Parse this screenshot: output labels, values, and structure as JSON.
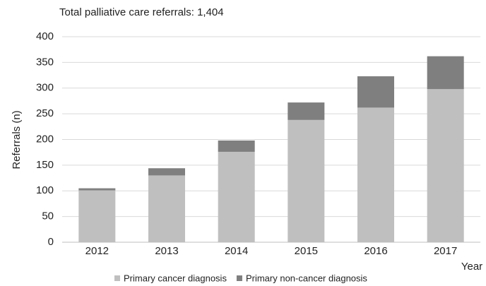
{
  "chart_data": {
    "type": "stacked-bar",
    "title": "Total palliative care referrals: 1,404",
    "x_label": "Year",
    "y_label": "Referrals (n)",
    "categories": [
      "2012",
      "2013",
      "2014",
      "2015",
      "2016",
      "2017"
    ],
    "series": [
      {
        "name": "Primary cancer diagnosis",
        "color": "#bfbfbf",
        "values": [
          101,
          130,
          176,
          238,
          262,
          298
        ]
      },
      {
        "name": "Primary non-cancer diagnosis",
        "color": "#7f7f7f",
        "values": [
          4,
          14,
          22,
          34,
          61,
          64
        ]
      }
    ],
    "ylim": [
      0,
      400
    ],
    "yticks": [
      0,
      50,
      100,
      150,
      200,
      250,
      300,
      350,
      400
    ],
    "grid": true
  }
}
